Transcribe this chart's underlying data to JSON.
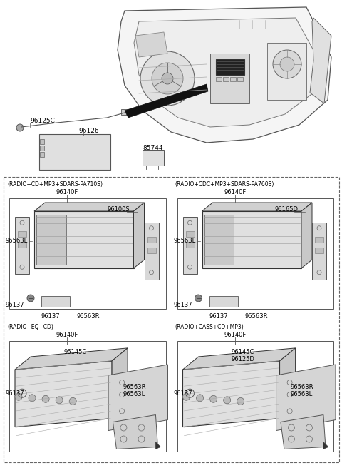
{
  "bg_color": "#ffffff",
  "panels": [
    {
      "label": "(RADIO+CD+MP3+SDARS-PA710S)",
      "part_top": "96140F",
      "part_main": "96100S",
      "part_left_label": "96563L",
      "part_screw1": "96137",
      "part_bottom_mid": "96137",
      "part_bottom_right": "96563R",
      "type": "type1",
      "col": 0,
      "row": 0
    },
    {
      "label": "(RADIO+CDC+MP3+SDARS-PA760S)",
      "part_top": "96140F",
      "part_main": "96165D",
      "part_left_label": "96563L",
      "part_screw1": "96137",
      "part_bottom_mid": "96137",
      "part_bottom_right": "96563R",
      "type": "type1",
      "col": 1,
      "row": 0
    },
    {
      "label": "(RADIO+EQ+CD)",
      "part_top": "96140F",
      "part_main": "96145C",
      "part_main2": null,
      "part_screw1": "96137",
      "part_right1": "96563R",
      "part_right2": "96563L",
      "type": "type2",
      "col": 0,
      "row": 1
    },
    {
      "label": "(RADIO+CASS+CD+MP3)",
      "part_top": "96140F",
      "part_main": "96145C",
      "part_main2": "96125D",
      "part_screw1": "96137",
      "part_right1": "96563R",
      "part_right2": "96563L",
      "type": "type2",
      "col": 1,
      "row": 1
    }
  ]
}
